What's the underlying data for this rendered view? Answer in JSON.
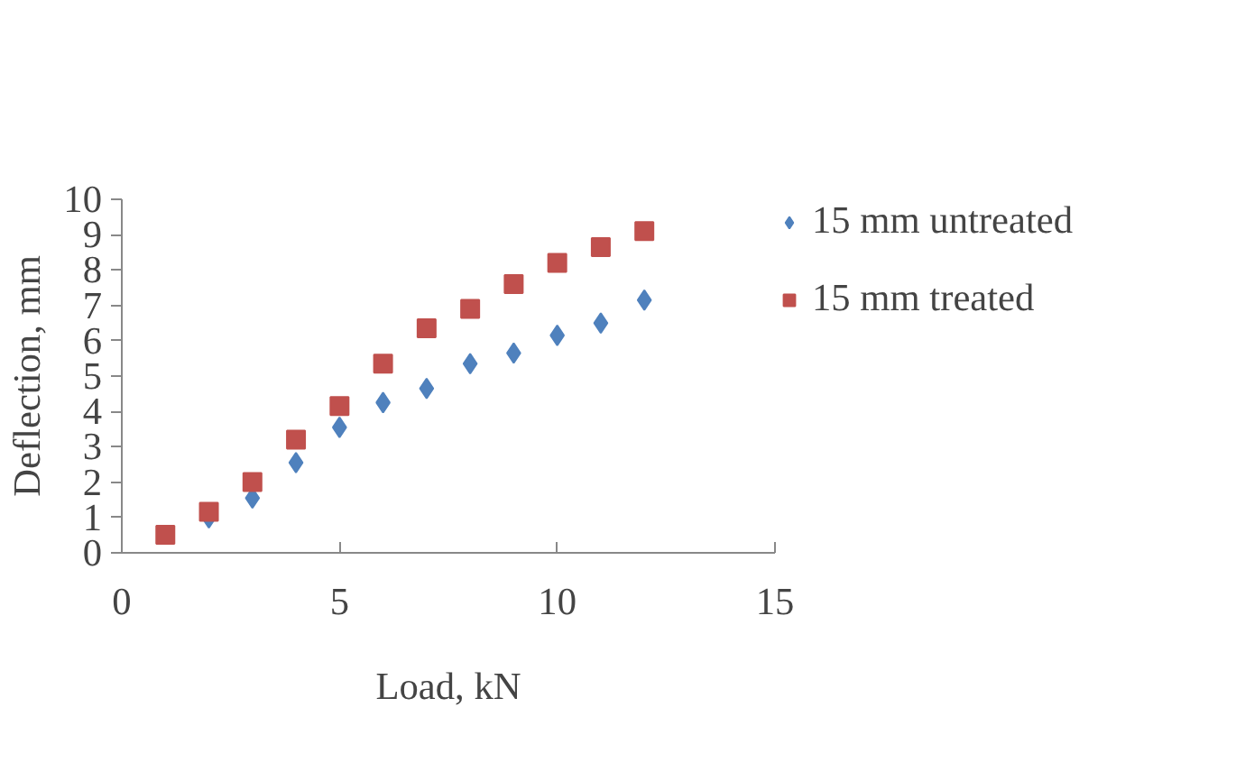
{
  "chart_data": {
    "type": "scatter",
    "xlabel": "Load, kN",
    "ylabel": "Deflection, mm",
    "x": [
      1,
      2,
      3,
      4,
      5,
      6,
      7,
      8,
      9,
      10,
      11,
      12
    ],
    "series": [
      {
        "name": "15 mm untreated",
        "color": "#4f81bd",
        "marker": "diamond",
        "values": [
          null,
          0.99,
          1.55,
          2.55,
          3.55,
          4.25,
          4.65,
          5.35,
          5.65,
          6.15,
          6.5,
          7.15
        ]
      },
      {
        "name": "15 mm treated",
        "color": "#c0504d",
        "marker": "square",
        "values": [
          0.51,
          1.16,
          2.0,
          3.2,
          4.15,
          5.35,
          6.35,
          6.9,
          7.6,
          8.2,
          8.65,
          9.1
        ]
      }
    ],
    "xlim": [
      0,
      15
    ],
    "ylim": [
      0,
      10
    ],
    "xticks": [
      0,
      5,
      10,
      15
    ],
    "yticks": [
      0,
      1,
      2,
      3,
      4,
      5,
      6,
      7,
      8,
      9,
      10
    ],
    "grid": false,
    "legend": "right"
  }
}
